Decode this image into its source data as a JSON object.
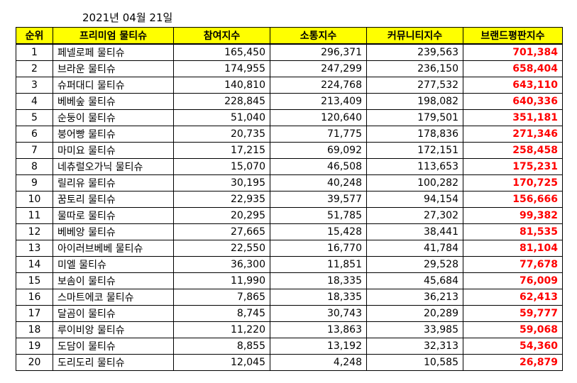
{
  "date": "2021년 04월 21일",
  "columns": [
    "순위",
    "프리미엄 물티슈",
    "참여지수",
    "소통지수",
    "커뮤니티지수",
    "브랜드평판지수"
  ],
  "rows": [
    {
      "rank": "1",
      "name": "페넬로페 물티슈",
      "participation": "165,450",
      "communication": "296,371",
      "community": "239,563",
      "brand": "701,384"
    },
    {
      "rank": "2",
      "name": "브라운 물티슈",
      "participation": "174,955",
      "communication": "247,299",
      "community": "236,150",
      "brand": "658,404"
    },
    {
      "rank": "3",
      "name": "슈퍼대디 물티슈",
      "participation": "140,810",
      "communication": "224,768",
      "community": "277,532",
      "brand": "643,110"
    },
    {
      "rank": "4",
      "name": "베베숲 물티슈",
      "participation": "228,845",
      "communication": "213,409",
      "community": "198,082",
      "brand": "640,336"
    },
    {
      "rank": "5",
      "name": "순둥이 물티슈",
      "participation": "51,040",
      "communication": "120,640",
      "community": "179,501",
      "brand": "351,181"
    },
    {
      "rank": "6",
      "name": "붕어빵 물티슈",
      "participation": "20,735",
      "communication": "71,775",
      "community": "178,836",
      "brand": "271,346"
    },
    {
      "rank": "7",
      "name": "마미요 물티슈",
      "participation": "17,215",
      "communication": "69,092",
      "community": "172,151",
      "brand": "258,458"
    },
    {
      "rank": "8",
      "name": "네츄럴오가닉 물티슈",
      "participation": "15,070",
      "communication": "46,508",
      "community": "113,653",
      "brand": "175,231"
    },
    {
      "rank": "9",
      "name": "릴리유 물티슈",
      "participation": "30,195",
      "communication": "40,248",
      "community": "100,282",
      "brand": "170,725"
    },
    {
      "rank": "10",
      "name": "꿈토리 물티슈",
      "participation": "22,935",
      "communication": "39,577",
      "community": "94,154",
      "brand": "156,666"
    },
    {
      "rank": "11",
      "name": "물따로 물티슈",
      "participation": "20,295",
      "communication": "51,785",
      "community": "27,302",
      "brand": "99,382"
    },
    {
      "rank": "12",
      "name": "베베앙 물티슈",
      "participation": "27,665",
      "communication": "15,428",
      "community": "38,441",
      "brand": "81,535"
    },
    {
      "rank": "13",
      "name": "아이러브베베 물티슈",
      "participation": "22,550",
      "communication": "16,770",
      "community": "41,784",
      "brand": "81,104"
    },
    {
      "rank": "14",
      "name": "미엘 물티슈",
      "participation": "36,300",
      "communication": "11,851",
      "community": "29,528",
      "brand": "77,678"
    },
    {
      "rank": "15",
      "name": "보솜이 물티슈",
      "participation": "11,990",
      "communication": "18,335",
      "community": "45,684",
      "brand": "76,009"
    },
    {
      "rank": "16",
      "name": "스마트에코 물티슈",
      "participation": "7,865",
      "communication": "18,335",
      "community": "36,213",
      "brand": "62,413"
    },
    {
      "rank": "17",
      "name": "달곰이 물티슈",
      "participation": "8,745",
      "communication": "30,743",
      "community": "20,289",
      "brand": "59,777"
    },
    {
      "rank": "18",
      "name": "루이비앙 물티슈",
      "participation": "11,220",
      "communication": "13,863",
      "community": "33,985",
      "brand": "59,068"
    },
    {
      "rank": "19",
      "name": "도담이 물티슈",
      "participation": "8,855",
      "communication": "13,192",
      "community": "32,313",
      "brand": "54,360"
    },
    {
      "rank": "20",
      "name": "도리도리 물티슈",
      "participation": "12,045",
      "communication": "4,248",
      "community": "10,585",
      "brand": "26,879"
    }
  ],
  "colors": {
    "header_bg": "#ffff00",
    "score_text": "#ff0000"
  }
}
